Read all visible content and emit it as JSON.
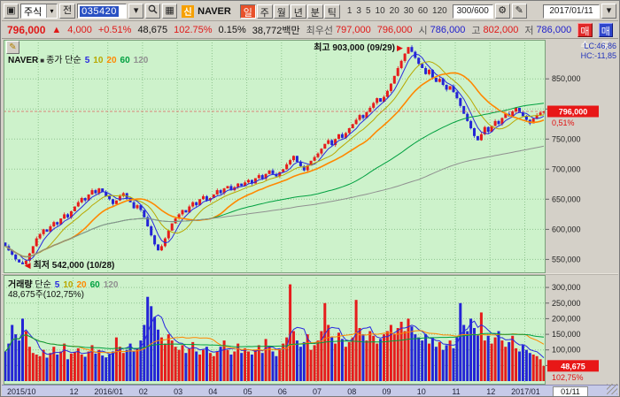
{
  "toolbar": {
    "asset_type": "주식",
    "prev_button": "전",
    "code": "035420",
    "stock_badge": "신",
    "stock_name": "NAVER",
    "periods": [
      "일",
      "주",
      "월",
      "년",
      "분",
      "틱"
    ],
    "active_period": "일",
    "intervals": [
      "1",
      "3",
      "5",
      "10",
      "20",
      "30",
      "60",
      "120"
    ],
    "bar_count": "300/600",
    "date": "2017/01/11"
  },
  "quote": {
    "price": "796,000",
    "change_arrow": "▲",
    "change": "4,000",
    "change_pct": "+0.51%",
    "volume": "48,675",
    "volume_ratio": "102.75%",
    "turnover_pct": "0.15%",
    "value": "38,772백만",
    "best_label": "최우선",
    "ask": "797,000",
    "bid": "796,000",
    "open_label": "시",
    "open": "786,000",
    "high_label": "고",
    "high": "802,000",
    "low_label": "저",
    "low": "786,000",
    "buy_button": "매수",
    "sell_button": "매도"
  },
  "ma": [
    {
      "label": "5",
      "color": "#2828e0"
    },
    {
      "label": "10",
      "color": "#b8a800"
    },
    {
      "label": "20",
      "color": "#ff8800"
    },
    {
      "label": "60",
      "color": "#00a040"
    },
    {
      "label": "120",
      "color": "#909090"
    }
  ],
  "price_pane": {
    "legend_title": "NAVER",
    "legend_type": "종가 단순",
    "lc_label": "LC:46,86",
    "hc_label": "HC:-11,85",
    "annotation_high": "최고 903,000 (09/29)",
    "annotation_low": "최저 542,000 (10/28)",
    "price_marker": "796,000",
    "pct_marker": "0,51%",
    "y_ticks": [
      "850,000",
      "800,000",
      "750,000",
      "700,000",
      "650,000",
      "600,000",
      "550,000"
    ]
  },
  "volume_pane": {
    "legend_title": "거래량",
    "legend_type": "단순",
    "volume_label": "48,675주(102,75%)",
    "marker": "48,675",
    "marker_pct": "102,75%",
    "y_ticks": [
      "300,000",
      "250,000",
      "200,000",
      "150,000",
      "100,000",
      "50,000"
    ]
  },
  "x_axis": {
    "labels": [
      {
        "idx": 0,
        "text": "2015/10"
      },
      {
        "idx": 20,
        "text": "12"
      },
      {
        "idx": 30,
        "text": "2016/01"
      },
      {
        "idx": 40,
        "text": "02"
      },
      {
        "idx": 50,
        "text": "03"
      },
      {
        "idx": 60,
        "text": "04"
      },
      {
        "idx": 70,
        "text": "05"
      },
      {
        "idx": 80,
        "text": "06"
      },
      {
        "idx": 90,
        "text": "07"
      },
      {
        "idx": 100,
        "text": "08"
      },
      {
        "idx": 110,
        "text": "09"
      },
      {
        "idx": 120,
        "text": "10"
      },
      {
        "idx": 130,
        "text": "11"
      },
      {
        "idx": 140,
        "text": "12"
      },
      {
        "idx": 150,
        "text": "2017/01"
      }
    ],
    "current_date": "01/11"
  },
  "chart_data": {
    "type": "candlestick+volume",
    "unit": "thousand KRW",
    "price_min": 530,
    "price_max": 915,
    "vol_max": 340,
    "first_open": 578,
    "closes": [
      572,
      565,
      558,
      550,
      545,
      542,
      548,
      560,
      572,
      585,
      592,
      600,
      596,
      605,
      612,
      608,
      618,
      625,
      620,
      630,
      638,
      645,
      652,
      648,
      658,
      665,
      660,
      668,
      662,
      655,
      650,
      642,
      648,
      655,
      660,
      652,
      645,
      635,
      640,
      632,
      620,
      605,
      590,
      575,
      565,
      572,
      585,
      598,
      610,
      618,
      625,
      632,
      628,
      638,
      645,
      640,
      650,
      655,
      648,
      652,
      658,
      665,
      660,
      668,
      672,
      665,
      670,
      676,
      672,
      678,
      682,
      676,
      685,
      690,
      684,
      692,
      698,
      692,
      688,
      695,
      700,
      708,
      715,
      722,
      712,
      705,
      698,
      706,
      714,
      720,
      726,
      734,
      742,
      748,
      740,
      750,
      758,
      752,
      760,
      768,
      775,
      782,
      790,
      785,
      795,
      802,
      810,
      818,
      812,
      820,
      830,
      842,
      855,
      868,
      880,
      892,
      903,
      895,
      885,
      875,
      868,
      858,
      865,
      852,
      845,
      850,
      840,
      832,
      838,
      828,
      818,
      805,
      792,
      780,
      768,
      755,
      748,
      758,
      770,
      762,
      772,
      780,
      775,
      785,
      792,
      788,
      796,
      802,
      794,
      788,
      782,
      776,
      784,
      790,
      794,
      796
    ],
    "volumes": [
      95,
      120,
      180,
      150,
      130,
      200,
      160,
      110,
      90,
      85,
      80,
      100,
      75,
      90,
      110,
      85,
      95,
      120,
      70,
      88,
      92,
      105,
      85,
      78,
      95,
      115,
      88,
      100,
      82,
      76,
      85,
      95,
      140,
      110,
      90,
      100,
      120,
      95,
      105,
      130,
      180,
      270,
      240,
      205,
      165,
      140,
      120,
      150,
      130,
      110,
      100,
      115,
      90,
      105,
      125,
      95,
      85,
      100,
      110,
      90,
      80,
      95,
      110,
      130,
      100,
      85,
      95,
      120,
      90,
      105,
      95,
      85,
      100,
      115,
      90,
      135,
      110,
      95,
      80,
      100,
      120,
      140,
      310,
      160,
      130,
      110,
      125,
      150,
      100,
      115,
      130,
      160,
      250,
      180,
      140,
      120,
      155,
      135,
      110,
      125,
      140,
      260,
      170,
      150,
      130,
      160,
      145,
      120,
      135,
      150,
      160,
      180,
      150,
      170,
      190,
      160,
      200,
      175,
      150,
      140,
      130,
      150,
      120,
      140,
      110,
      125,
      100,
      115,
      130,
      105,
      140,
      250,
      180,
      160,
      200,
      170,
      150,
      220,
      130,
      145,
      120,
      140,
      160,
      130,
      110,
      125,
      145,
      105,
      95,
      115,
      100,
      90,
      85,
      80,
      70,
      48.675
    ],
    "month_start_indices": [
      0,
      10,
      20,
      30,
      40,
      50,
      60,
      70,
      80,
      90,
      100,
      110,
      120,
      130,
      140,
      150
    ],
    "price_gridlines": [
      850,
      800,
      750,
      700,
      650,
      600,
      550
    ],
    "vol_gridlines": [
      300,
      250,
      200,
      150,
      100,
      50
    ],
    "high_point": {
      "index": 116,
      "value": 903
    },
    "low_point": {
      "index": 5,
      "value": 542
    },
    "last_price": 796,
    "last_volume": 48.675
  }
}
